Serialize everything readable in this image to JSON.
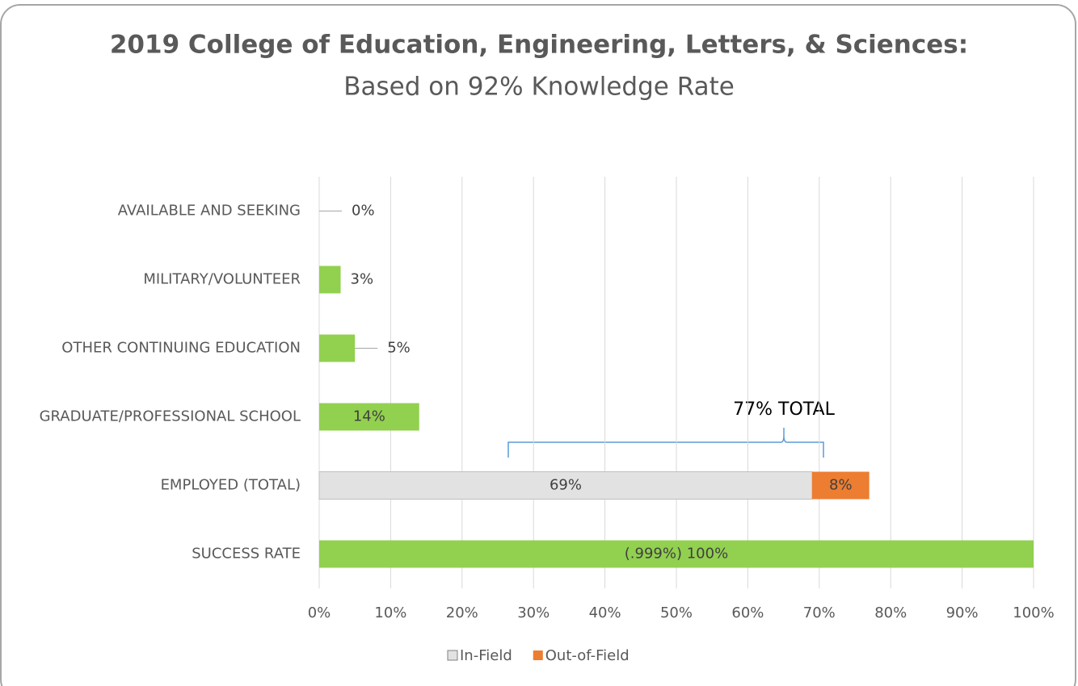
{
  "chart_data": {
    "type": "stacked_barh",
    "title": "2019 College of Education, Engineering, Letters, & Sciences:",
    "subtitle": "Based on 92% Knowledge Rate",
    "annotation": "77% TOTAL",
    "categories": [
      "AVAILABLE AND SEEKING",
      "MILITARY/VOLUNTEER",
      "OTHER CONTINUING EDUCATION",
      "GRADUATE/PROFESSIONAL SCHOOL",
      "EMPLOYED (TOTAL)",
      "SUCCESS RATE"
    ],
    "series": [
      {
        "color": "#92d050",
        "values": [
          0,
          3,
          5,
          14,
          null,
          100
        ],
        "value_labels": [
          "0%",
          "3%",
          "5%",
          "14%",
          null,
          "(.999%) 100%"
        ]
      },
      {
        "name": "In-Field",
        "color": "#e2e2e2",
        "values": [
          null,
          null,
          null,
          null,
          69,
          null
        ],
        "value_labels": [
          null,
          null,
          null,
          null,
          "69%",
          null
        ]
      },
      {
        "name": "Out-of-Field",
        "color": "#ed7d31",
        "values": [
          null,
          null,
          null,
          null,
          8,
          null
        ],
        "value_labels": [
          null,
          null,
          null,
          null,
          "8%",
          null
        ]
      }
    ],
    "xlim": [
      0,
      100
    ],
    "xticks": [
      {
        "value": 0,
        "label": "0%"
      },
      {
        "value": 10,
        "label": "10%"
      },
      {
        "value": 20,
        "label": "20%"
      },
      {
        "value": 30,
        "label": "30%"
      },
      {
        "value": 40,
        "label": "40%"
      },
      {
        "value": 50,
        "label": "50%"
      },
      {
        "value": 60,
        "label": "60%"
      },
      {
        "value": 70,
        "label": "70%"
      },
      {
        "value": 80,
        "label": "80%"
      },
      {
        "value": 90,
        "label": "90%"
      },
      {
        "value": 100,
        "label": "100%"
      }
    ],
    "grid": true,
    "legend": "bottom"
  }
}
